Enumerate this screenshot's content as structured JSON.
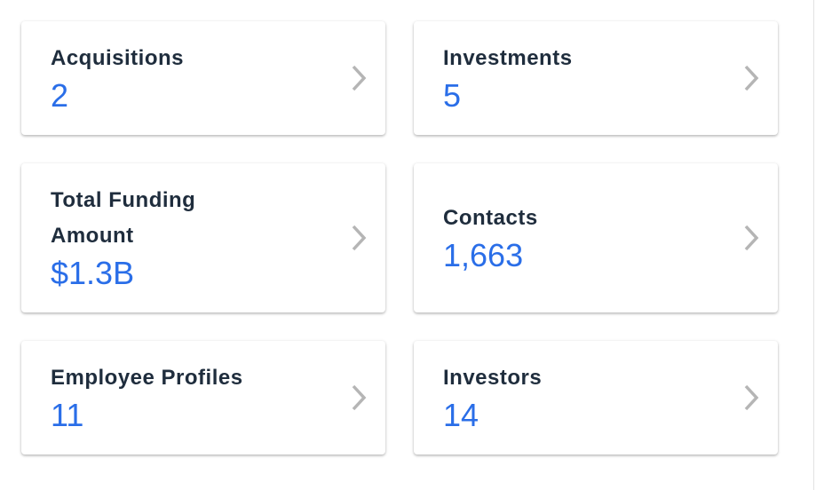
{
  "cards": [
    {
      "label": "Acquisitions",
      "value": "2"
    },
    {
      "label": "Investments",
      "value": "5"
    },
    {
      "label": "Total Funding Amount",
      "value": "$1.3B"
    },
    {
      "label": "Contacts",
      "value": "1,663"
    },
    {
      "label": "Employee Profiles",
      "value": "11"
    },
    {
      "label": "Investors",
      "value": "14"
    }
  ]
}
